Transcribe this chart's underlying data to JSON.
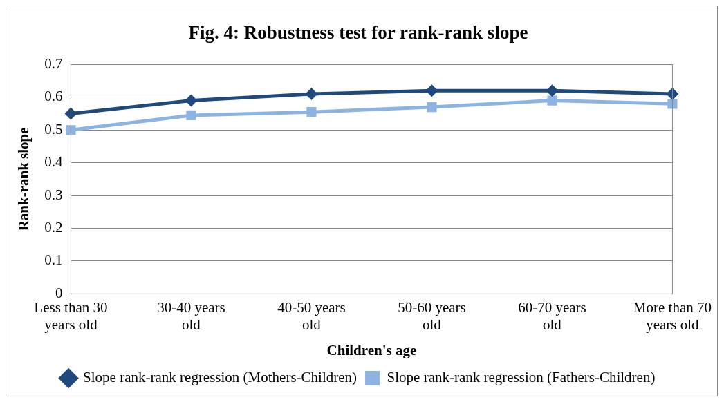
{
  "chart_data": {
    "type": "line",
    "title": "Fig. 4: Robustness test for rank-rank slope",
    "xlabel": "Children's age",
    "ylabel": "Rank-rank slope",
    "categories": [
      "Less than 30 years old",
      "30-40 years old",
      "40-50 years old",
      "50-60 years old",
      "60-70 years old",
      "More than 70 years old"
    ],
    "series": [
      {
        "name": "Slope rank-rank regression (Mothers-Children)",
        "color": "#1f497d",
        "marker": "diamond",
        "values": [
          0.55,
          0.59,
          0.61,
          0.62,
          0.62,
          0.61
        ]
      },
      {
        "name": "Slope rank-rank regression (Fathers-Children)",
        "color": "#8db3e2",
        "marker": "square",
        "values": [
          0.5,
          0.545,
          0.555,
          0.57,
          0.59,
          0.58
        ]
      }
    ],
    "ylim": [
      0,
      0.7
    ],
    "yticks": [
      0,
      0.1,
      0.2,
      0.3,
      0.4,
      0.5,
      0.6,
      0.7
    ],
    "grid": "y",
    "legend": "bottom",
    "line_style": "solid"
  }
}
